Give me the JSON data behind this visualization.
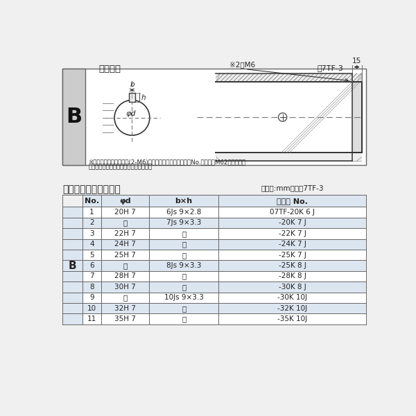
{
  "title_top": "軸穴形状",
  "title_top_right": "図7TF-3",
  "table_title": "軸穴形状コード一覧表",
  "table_unit": "（単位:mm）　表7TF-3",
  "table_headers": [
    "No.",
    "φd",
    "b×h",
    "コード No."
  ],
  "table_rows": [
    [
      "1",
      "20H 7",
      "6Js 9×2.8",
      "07TF-20K 6 J"
    ],
    [
      "2",
      "〃",
      "7Js 9×3.3",
      "-20K 7 J"
    ],
    [
      "3",
      "22H 7",
      "〃",
      "-22K 7 J"
    ],
    [
      "4",
      "24H 7",
      "〃",
      "-24K 7 J"
    ],
    [
      "5",
      "25H 7",
      "〃",
      "-25K 7 J"
    ],
    [
      "6",
      "〃",
      "8Js 9×3.3",
      "-25K 8 J"
    ],
    [
      "7",
      "28H 7",
      "〃",
      "-28K 8 J"
    ],
    [
      "8",
      "30H 7",
      "〃",
      "-30K 8 J"
    ],
    [
      "9",
      "〃",
      "10Js 9×3.3",
      "-30K 10J"
    ],
    [
      "10",
      "32H 7",
      "〃",
      "-32K 10J"
    ],
    [
      "11",
      "35H 7",
      "〃",
      "-35K 10J"
    ]
  ],
  "row_B_label": "B",
  "note_line1": "※セットボルト用タップ(2-M6)が必要な場合は右記コードNo.の末尾にM62を付ける。",
  "note_line2": "（セットボルトは付属されています。）",
  "light_blue": "#dce6f1",
  "white": "#ffffff",
  "border_color": "#666666",
  "text_color": "#222222",
  "hatch_color": "#999999",
  "bg_color": "#f0f0f0",
  "diagram_bg": "#ffffff"
}
